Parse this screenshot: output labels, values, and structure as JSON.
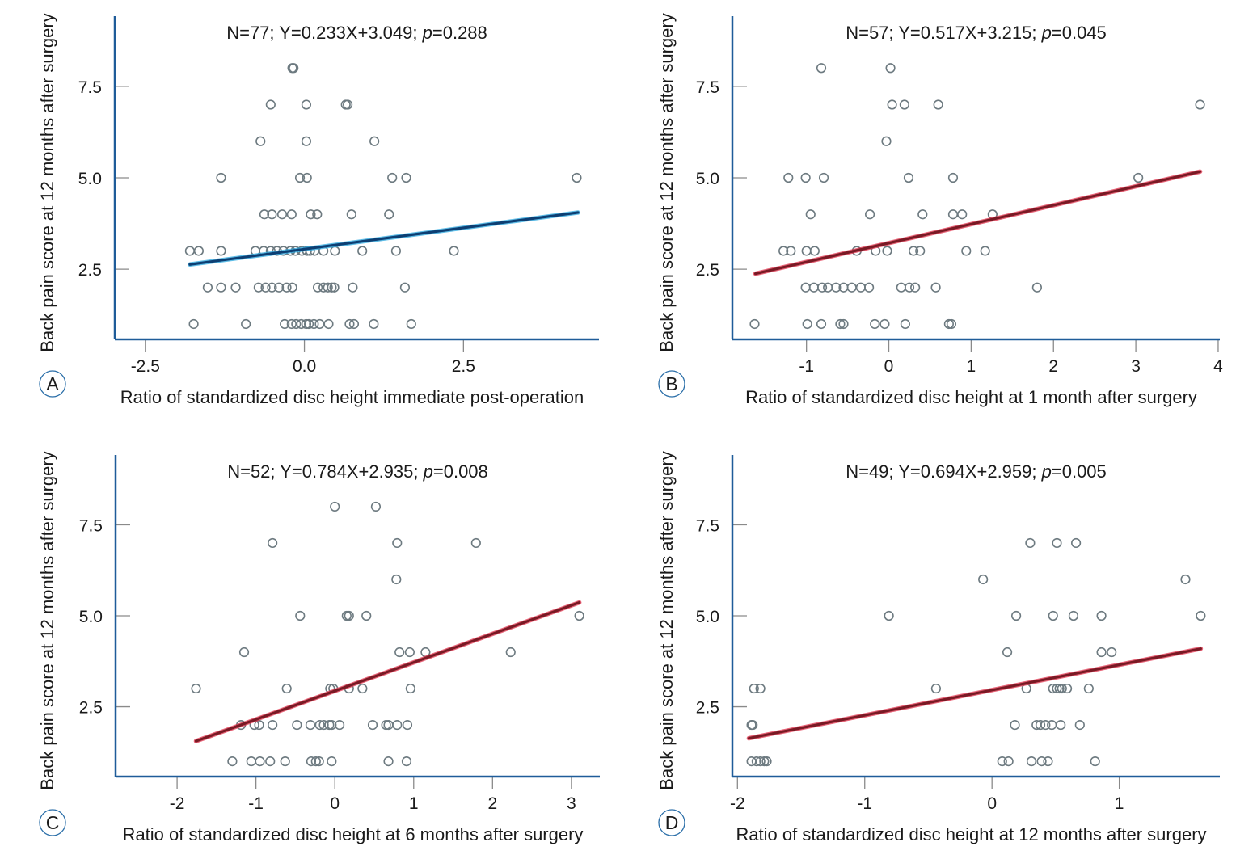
{
  "figure": {
    "panels": [
      "A",
      "B",
      "C",
      "D"
    ]
  },
  "colors": {
    "axis_frame": "#1f5c99",
    "tick_mark": "#8a8a8a",
    "marker": "#6d7a80",
    "regression_A": "#0d3f73",
    "regression_A_glow": "#29a8e0",
    "regression_BCD": "#7a1a25",
    "regression_BCD_glow": "#e0304a",
    "label_circle": "#2a6ea8"
  },
  "chart_data": [
    {
      "type": "scatter",
      "panel": "A",
      "title": "N=77; Y=0.233X+3.049; p=0.288",
      "title_parts": {
        "pre": "N=77; Y=0.233X+3.049; ",
        "p": "p",
        "post": "=0.288"
      },
      "xlabel": "Ratio of standardized disc height immediate post-operation",
      "ylabel": "Back pain score at 12 months after surgery",
      "xlim": [
        -2.98,
        4.63
      ],
      "ylim": [
        0.58,
        9.42
      ],
      "xticks": [
        -2.5,
        0.0,
        2.5
      ],
      "xtick_labels": [
        "-2.5",
        "0.0",
        "2.5"
      ],
      "yticks": [
        2.5,
        5.0,
        7.5
      ],
      "ytick_labels": [
        "2.5",
        "5.0",
        "7.5"
      ],
      "grid": false,
      "regression": {
        "slope": 0.233,
        "intercept": 3.049,
        "x_range": [
          -1.8,
          4.3
        ],
        "n": 77,
        "p": 0.288
      },
      "points": [
        [
          -0.19,
          8
        ],
        [
          -0.17,
          8
        ],
        [
          -0.53,
          7
        ],
        [
          0.03,
          7
        ],
        [
          0.65,
          7
        ],
        [
          0.68,
          7
        ],
        [
          -0.69,
          6
        ],
        [
          0.03,
          6
        ],
        [
          1.1,
          6
        ],
        [
          -1.31,
          5
        ],
        [
          -0.07,
          5
        ],
        [
          0.04,
          5
        ],
        [
          1.38,
          5
        ],
        [
          1.6,
          5
        ],
        [
          4.28,
          5
        ],
        [
          -0.63,
          4
        ],
        [
          -0.51,
          4
        ],
        [
          -0.35,
          4
        ],
        [
          -0.2,
          4
        ],
        [
          0.1,
          4
        ],
        [
          0.2,
          4
        ],
        [
          0.74,
          4
        ],
        [
          1.33,
          4
        ],
        [
          -1.8,
          3
        ],
        [
          -1.66,
          3
        ],
        [
          -1.31,
          3
        ],
        [
          -0.77,
          3
        ],
        [
          -0.64,
          3
        ],
        [
          -0.53,
          3
        ],
        [
          -0.43,
          3
        ],
        [
          -0.33,
          3
        ],
        [
          -0.22,
          3
        ],
        [
          -0.14,
          3
        ],
        [
          -0.04,
          3
        ],
        [
          0.04,
          3
        ],
        [
          0.09,
          3
        ],
        [
          0.16,
          3
        ],
        [
          0.3,
          3
        ],
        [
          0.48,
          3
        ],
        [
          0.91,
          3
        ],
        [
          1.44,
          3
        ],
        [
          2.35,
          3
        ],
        [
          -1.52,
          2
        ],
        [
          -1.31,
          2
        ],
        [
          -1.08,
          2
        ],
        [
          -0.72,
          2
        ],
        [
          -0.61,
          2
        ],
        [
          -0.51,
          2
        ],
        [
          -0.4,
          2
        ],
        [
          -0.28,
          2
        ],
        [
          -0.19,
          2
        ],
        [
          0.21,
          2
        ],
        [
          0.3,
          2
        ],
        [
          0.37,
          2
        ],
        [
          0.43,
          2
        ],
        [
          0.47,
          2
        ],
        [
          0.76,
          2
        ],
        [
          1.58,
          2
        ],
        [
          -1.74,
          1
        ],
        [
          -0.92,
          1
        ],
        [
          -0.31,
          1
        ],
        [
          -0.2,
          1
        ],
        [
          -0.13,
          1
        ],
        [
          -0.05,
          1
        ],
        [
          0.03,
          1
        ],
        [
          0.07,
          1
        ],
        [
          0.15,
          1
        ],
        [
          0.24,
          1
        ],
        [
          0.38,
          1
        ],
        [
          0.71,
          1
        ],
        [
          0.78,
          1
        ],
        [
          1.09,
          1
        ],
        [
          1.68,
          1
        ]
      ]
    },
    {
      "type": "scatter",
      "panel": "B",
      "title": "N=57; Y=0.517X+3.215; p=0.045",
      "title_parts": {
        "pre": "N=57; Y=0.517X+3.215; ",
        "p": "p",
        "post": "=0.045"
      },
      "xlabel": "Ratio of standardized disc height at 1 month after surgery",
      "ylabel": "Back pain score at 12 months after surgery",
      "xlim": [
        -1.9,
        4.02
      ],
      "ylim": [
        0.58,
        9.42
      ],
      "xticks": [
        -1,
        0,
        1,
        2,
        3,
        4
      ],
      "xtick_labels": [
        "-1",
        "0",
        "1",
        "2",
        "3",
        "4"
      ],
      "yticks": [
        2.5,
        5.0,
        7.5
      ],
      "ytick_labels": [
        "2.5",
        "5.0",
        "7.5"
      ],
      "grid": false,
      "regression": {
        "slope": 0.517,
        "intercept": 3.215,
        "x_range": [
          -1.62,
          3.78
        ],
        "n": 57,
        "p": 0.045
      },
      "points": [
        [
          -0.82,
          8
        ],
        [
          0.02,
          8
        ],
        [
          0.04,
          7
        ],
        [
          0.19,
          7
        ],
        [
          0.6,
          7
        ],
        [
          3.78,
          7
        ],
        [
          -0.03,
          6
        ],
        [
          -1.22,
          5
        ],
        [
          -1.01,
          5
        ],
        [
          -0.79,
          5
        ],
        [
          0.24,
          5
        ],
        [
          0.78,
          5
        ],
        [
          3.03,
          5
        ],
        [
          -0.95,
          4
        ],
        [
          -0.23,
          4
        ],
        [
          0.41,
          4
        ],
        [
          0.78,
          4
        ],
        [
          0.89,
          4
        ],
        [
          1.26,
          4
        ],
        [
          -1.28,
          3
        ],
        [
          -1.19,
          3
        ],
        [
          -1.0,
          3
        ],
        [
          -0.9,
          3
        ],
        [
          -0.39,
          3
        ],
        [
          -0.16,
          3
        ],
        [
          -0.02,
          3
        ],
        [
          0.3,
          3
        ],
        [
          0.38,
          3
        ],
        [
          0.94,
          3
        ],
        [
          1.17,
          3
        ],
        [
          -1.01,
          2
        ],
        [
          -0.91,
          2
        ],
        [
          -0.81,
          2
        ],
        [
          -0.74,
          2
        ],
        [
          -0.64,
          2
        ],
        [
          -0.55,
          2
        ],
        [
          -0.45,
          2
        ],
        [
          -0.34,
          2
        ],
        [
          -0.24,
          2
        ],
        [
          0.15,
          2
        ],
        [
          0.25,
          2
        ],
        [
          0.32,
          2
        ],
        [
          0.57,
          2
        ],
        [
          1.8,
          2
        ],
        [
          -1.63,
          1
        ],
        [
          -0.99,
          1
        ],
        [
          -0.82,
          1
        ],
        [
          -0.59,
          1
        ],
        [
          -0.55,
          1
        ],
        [
          -0.17,
          1
        ],
        [
          -0.05,
          1
        ],
        [
          0.2,
          1
        ],
        [
          0.73,
          1
        ],
        [
          0.76,
          1
        ]
      ]
    },
    {
      "type": "scatter",
      "panel": "C",
      "title": "N=52; Y=0.784X+2.935; p=0.008",
      "title_parts": {
        "pre": "N=52; Y=0.784X+2.935; ",
        "p": "p",
        "post": "=0.008"
      },
      "xlabel": "Ratio of standardized disc height at 6 months after surgery",
      "ylabel": "Back pain score at 12 months after surgery",
      "xlim": [
        -2.78,
        3.36
      ],
      "ylim": [
        0.58,
        9.42
      ],
      "xticks": [
        -2,
        -1,
        0,
        1,
        2,
        3
      ],
      "xtick_labels": [
        "-2",
        "-1",
        "0",
        "1",
        "2",
        "3"
      ],
      "yticks": [
        2.5,
        5.0,
        7.5
      ],
      "ytick_labels": [
        "2.5",
        "5.0",
        "7.5"
      ],
      "grid": false,
      "regression": {
        "slope": 0.784,
        "intercept": 2.935,
        "x_range": [
          -1.76,
          3.1
        ],
        "n": 52,
        "p": 0.008
      },
      "points": [
        [
          0.0,
          8
        ],
        [
          0.52,
          8
        ],
        [
          -0.79,
          7
        ],
        [
          0.79,
          7
        ],
        [
          1.79,
          7
        ],
        [
          0.78,
          6
        ],
        [
          -0.44,
          5
        ],
        [
          0.15,
          5
        ],
        [
          0.18,
          5
        ],
        [
          0.4,
          5
        ],
        [
          3.1,
          5
        ],
        [
          -1.15,
          4
        ],
        [
          0.82,
          4
        ],
        [
          0.95,
          4
        ],
        [
          1.15,
          4
        ],
        [
          2.23,
          4
        ],
        [
          -1.76,
          3
        ],
        [
          -0.61,
          3
        ],
        [
          -0.06,
          3
        ],
        [
          -0.02,
          3
        ],
        [
          0.18,
          3
        ],
        [
          0.35,
          3
        ],
        [
          0.96,
          3
        ],
        [
          -1.19,
          2
        ],
        [
          -1.02,
          2
        ],
        [
          -0.96,
          2
        ],
        [
          -0.79,
          2
        ],
        [
          -0.48,
          2
        ],
        [
          -0.31,
          2
        ],
        [
          -0.19,
          2
        ],
        [
          -0.14,
          2
        ],
        [
          -0.07,
          2
        ],
        [
          -0.04,
          2
        ],
        [
          0.06,
          2
        ],
        [
          0.48,
          2
        ],
        [
          0.65,
          2
        ],
        [
          0.68,
          2
        ],
        [
          0.79,
          2
        ],
        [
          0.92,
          2
        ],
        [
          -1.3,
          1
        ],
        [
          -1.06,
          1
        ],
        [
          -0.95,
          1
        ],
        [
          -0.82,
          1
        ],
        [
          -0.63,
          1
        ],
        [
          -0.3,
          1
        ],
        [
          -0.24,
          1
        ],
        [
          -0.2,
          1
        ],
        [
          -0.04,
          1
        ],
        [
          0.68,
          1
        ],
        [
          0.91,
          1
        ]
      ]
    },
    {
      "type": "scatter",
      "panel": "D",
      "title": "N=49; Y=0.694X+2.959; p=0.005",
      "title_parts": {
        "pre": "N=49; Y=0.694X+2.959; ",
        "p": "p",
        "post": "=0.005"
      },
      "xlabel": "Ratio of standardized disc height at 12 months after surgery",
      "ylabel": "Back pain score at 12 months after surgery",
      "xlim": [
        -2.04,
        1.79
      ],
      "ylim": [
        0.58,
        9.42
      ],
      "xticks": [
        -2,
        -1,
        0,
        1
      ],
      "xtick_labels": [
        "-2",
        "-1",
        "0",
        "1"
      ],
      "yticks": [
        2.5,
        5.0,
        7.5
      ],
      "ytick_labels": [
        "2.5",
        "5.0",
        "7.5"
      ],
      "grid": false,
      "regression": {
        "slope": 0.694,
        "intercept": 2.959,
        "x_range": [
          -1.91,
          1.64
        ],
        "n": 49,
        "p": 0.005
      },
      "points": [
        [
          0.3,
          7
        ],
        [
          0.51,
          7
        ],
        [
          0.66,
          7
        ],
        [
          -0.07,
          6
        ],
        [
          1.52,
          6
        ],
        [
          -0.81,
          5
        ],
        [
          0.19,
          5
        ],
        [
          0.48,
          5
        ],
        [
          0.64,
          5
        ],
        [
          0.86,
          5
        ],
        [
          1.64,
          5
        ],
        [
          0.12,
          4
        ],
        [
          0.86,
          4
        ],
        [
          0.94,
          4
        ],
        [
          -1.87,
          3
        ],
        [
          -1.82,
          3
        ],
        [
          -0.44,
          3
        ],
        [
          0.27,
          3
        ],
        [
          0.48,
          3
        ],
        [
          0.51,
          3
        ],
        [
          0.53,
          3
        ],
        [
          0.55,
          3
        ],
        [
          0.59,
          3
        ],
        [
          0.76,
          3
        ],
        [
          -1.89,
          2
        ],
        [
          -1.88,
          2
        ],
        [
          0.18,
          2
        ],
        [
          0.35,
          2
        ],
        [
          0.38,
          2
        ],
        [
          0.42,
          2
        ],
        [
          0.47,
          2
        ],
        [
          0.54,
          2
        ],
        [
          0.69,
          2
        ],
        [
          -1.89,
          1
        ],
        [
          -1.85,
          1
        ],
        [
          -1.82,
          1
        ],
        [
          -1.79,
          1
        ],
        [
          -1.77,
          1
        ],
        [
          0.08,
          1
        ],
        [
          0.13,
          1
        ],
        [
          0.31,
          1
        ],
        [
          0.39,
          1
        ],
        [
          0.44,
          1
        ],
        [
          0.81,
          1
        ]
      ]
    }
  ]
}
